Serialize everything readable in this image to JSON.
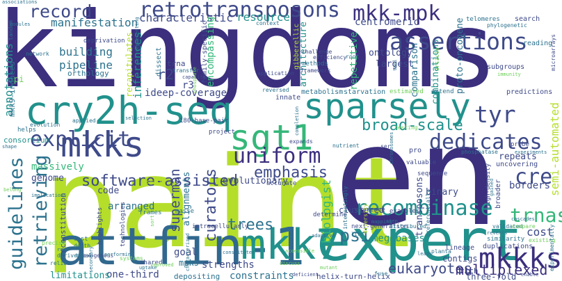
{
  "palette": {
    "background": "#ffffff",
    "indigo": "#3b2f7e",
    "navy": "#3e4a89",
    "blue": "#31688e",
    "steel": "#2c728e",
    "teal": "#21918c",
    "green": "#35b779",
    "lightgreen": "#6ece58",
    "lime": "#b5de2b",
    "purple": "#482878"
  },
  "words": [
    {
      "text": "kingdoms",
      "color": "indigo"
    },
    {
      "text": "paint",
      "color": "lime"
    },
    {
      "text": "en",
      "color": "indigo"
    },
    {
      "text": "expert",
      "color": "teal"
    },
    {
      "text": "attfin-1",
      "color": "blue"
    },
    {
      "text": "cry2h-seq",
      "color": "teal"
    },
    {
      "text": "sparsely",
      "color": "teal"
    },
    {
      "text": "mkk7",
      "color": "teal"
    },
    {
      "text": "mkks",
      "color": "navy"
    },
    {
      "text": "sgt1",
      "color": "green"
    },
    {
      "text": "retrotransposons",
      "color": "navy"
    },
    {
      "text": "uniform",
      "color": "indigo"
    },
    {
      "text": "mkk-mpk",
      "color": "indigo"
    },
    {
      "text": "assertions",
      "color": "navy"
    },
    {
      "text": "record",
      "color": "navy"
    },
    {
      "text": "explicit",
      "color": "navy"
    },
    {
      "text": "dedicates",
      "color": "navy"
    },
    {
      "text": "mkkks",
      "color": "indigo"
    },
    {
      "text": "recombinase",
      "color": "teal"
    },
    {
      "text": "guidelines",
      "color": "steel"
    },
    {
      "text": "retrieving",
      "color": "steel"
    },
    {
      "text": "tyr",
      "color": "navy"
    },
    {
      "text": "trnas",
      "color": "green"
    },
    {
      "text": "cre",
      "color": "navy"
    },
    {
      "text": "psi",
      "color": "steel"
    },
    {
      "text": "software-assisted",
      "color": "navy"
    },
    {
      "text": "broad-scale",
      "color": "teal"
    },
    {
      "text": "emphasis",
      "color": "navy"
    },
    {
      "text": "curators",
      "color": "navy"
    },
    {
      "text": "eukaryotes",
      "color": "navy"
    },
    {
      "text": "multiplexed",
      "color": "indigo"
    },
    {
      "text": "trees",
      "color": "steel"
    },
    {
      "text": "megabases",
      "color": "teal"
    },
    {
      "text": "superman",
      "color": "navy"
    },
    {
      "text": "biologist",
      "color": "green"
    },
    {
      "text": "manifestation",
      "color": "steel"
    },
    {
      "text": "characteristic",
      "color": "navy"
    },
    {
      "text": "resource",
      "color": "teal"
    },
    {
      "text": "annotations",
      "color": "teal"
    },
    {
      "text": "pipeline",
      "color": "steel"
    },
    {
      "text": "building",
      "color": "steel"
    },
    {
      "text": "r2",
      "color": "navy"
    },
    {
      "text": "r3",
      "color": "navy"
    },
    {
      "text": "inferences",
      "color": "teal"
    },
    {
      "text": "ideep-coverage",
      "color": "navy"
    },
    {
      "text": "encompassing",
      "color": "green"
    },
    {
      "text": "architecture",
      "color": "teal"
    },
    {
      "text": "centromeric",
      "color": "navy"
    },
    {
      "text": "repetitive",
      "color": "green"
    },
    {
      "text": "ontology",
      "color": "navy"
    },
    {
      "text": "largest",
      "color": "navy"
    },
    {
      "text": "comparison",
      "color": "steel"
    },
    {
      "text": "proto-oncogene",
      "color": "steel"
    },
    {
      "text": "combinations",
      "color": "teal"
    },
    {
      "text": "semi-automated",
      "color": "lime"
    },
    {
      "text": "borders",
      "color": "navy"
    },
    {
      "text": "repeats",
      "color": "navy"
    },
    {
      "text": "cost",
      "color": "navy"
    },
    {
      "text": "massively",
      "color": "green"
    },
    {
      "text": "genome",
      "color": "navy"
    },
    {
      "text": "evolutionary",
      "color": "navy"
    },
    {
      "text": "binary",
      "color": "navy"
    },
    {
      "text": "transposons",
      "color": "navy"
    },
    {
      "text": "arranged",
      "color": "steel"
    },
    {
      "text": "alignments",
      "color": "steel"
    },
    {
      "text": "code",
      "color": "navy"
    },
    {
      "text": "clustered",
      "color": "navy"
    },
    {
      "text": "strengths",
      "color": "navy"
    },
    {
      "text": "constraints",
      "color": "steel"
    },
    {
      "text": "one-third",
      "color": "navy"
    },
    {
      "text": "three-fold",
      "color": "navy"
    },
    {
      "text": "limitations",
      "color": "teal"
    },
    {
      "text": "goal",
      "color": "navy"
    },
    {
      "text": "depositing",
      "color": "steel"
    },
    {
      "text": "contigs",
      "color": "navy"
    },
    {
      "text": "rich",
      "color": "navy"
    },
    {
      "text": "mpks",
      "color": "steel"
    },
    {
      "text": "consortium",
      "color": "teal"
    },
    {
      "text": "mkk9-induced",
      "color": "steel"
    },
    {
      "text": "orthology",
      "color": "steel"
    },
    {
      "text": "recapitulates",
      "color": "lime"
    },
    {
      "text": "dissect",
      "color": "steel"
    },
    {
      "text": "trna",
      "color": "navy"
    },
    {
      "text": "reconstitution",
      "color": "navy"
    },
    {
      "text": "helix-turn-helix",
      "color": "navy"
    },
    {
      "text": "duplications",
      "color": "navy"
    },
    {
      "text": "predictions",
      "color": "navy"
    },
    {
      "text": "telomeres",
      "color": "steel"
    },
    {
      "text": "search",
      "color": "navy"
    },
    {
      "text": "reading",
      "color": "steel"
    },
    {
      "text": "subgroups",
      "color": "navy"
    },
    {
      "text": "high-density",
      "color": "navy"
    },
    {
      "text": "uncovering",
      "color": "navy"
    },
    {
      "text": "broader",
      "color": "navy"
    },
    {
      "text": "180-base-pair",
      "color": "navy"
    },
    {
      "text": "project",
      "color": "navy"
    },
    {
      "text": "valuable",
      "color": "navy"
    },
    {
      "text": "next-generation",
      "color": "navy"
    },
    {
      "text": "reference",
      "color": "navy"
    },
    {
      "text": "sequence",
      "color": "navy"
    },
    {
      "text": "accurate",
      "color": "navy"
    },
    {
      "text": "highlights",
      "color": "navy"
    },
    {
      "text": "technologies",
      "color": "navy"
    },
    {
      "text": "intracellularly",
      "color": "navy"
    },
    {
      "text": "tandem",
      "color": "steel"
    },
    {
      "text": "pi",
      "color": "lightgreen"
    },
    {
      "text": "network",
      "color": "steel"
    },
    {
      "text": "deprivation",
      "color": "navy"
    },
    {
      "text": "applied",
      "color": "steel"
    },
    {
      "text": "evolution",
      "color": "steel"
    },
    {
      "text": "helps",
      "color": "steel"
    },
    {
      "text": "implications",
      "color": "steel"
    },
    {
      "text": "lost",
      "color": "steel"
    },
    {
      "text": "death",
      "color": "steel"
    },
    {
      "text": "precise",
      "color": "lightgreen"
    },
    {
      "text": "derived",
      "color": "steel"
    },
    {
      "text": "total",
      "color": "steel"
    },
    {
      "text": "exogenous",
      "color": "navy"
    },
    {
      "text": "relies",
      "color": "steel"
    },
    {
      "text": "systems",
      "color": "lightgreen"
    },
    {
      "text": "shared",
      "color": "navy"
    },
    {
      "text": "improved",
      "color": "lightgreen"
    },
    {
      "text": "performing",
      "color": "steel"
    },
    {
      "text": "frames",
      "color": "steel"
    },
    {
      "text": "masse",
      "color": "steel"
    },
    {
      "text": "determine",
      "color": "navy"
    },
    {
      "text": "life",
      "color": "steel"
    },
    {
      "text": "fuse",
      "color": "steel"
    },
    {
      "text": "deficient",
      "color": "navy"
    },
    {
      "text": "lineage",
      "color": "navy"
    },
    {
      "text": "planta",
      "color": "steel"
    },
    {
      "text": "similarity",
      "color": "steel"
    },
    {
      "text": "validated",
      "color": "steel"
    },
    {
      "text": "cascades",
      "color": "steel"
    },
    {
      "text": "compare",
      "color": "lightgreen"
    },
    {
      "text": "existing",
      "color": "lightgreen"
    },
    {
      "text": "enable",
      "color": "navy"
    },
    {
      "text": "experimentally",
      "color": "steel"
    },
    {
      "text": "mapping",
      "color": "steel"
    },
    {
      "text": "distributed",
      "color": "steel"
    },
    {
      "text": "metabolism",
      "color": "steel"
    },
    {
      "text": "starvation",
      "color": "steel"
    },
    {
      "text": "estimated",
      "color": "lightgreen"
    },
    {
      "text": "extend",
      "color": "steel"
    },
    {
      "text": "innate",
      "color": "navy"
    },
    {
      "text": "reversed",
      "color": "steel"
    },
    {
      "text": "application",
      "color": "navy"
    },
    {
      "text": "gibberellic",
      "color": "lime"
    },
    {
      "text": "methods",
      "color": "steel"
    },
    {
      "text": "framework",
      "color": "navy"
    },
    {
      "text": "efficiency",
      "color": "navy"
    },
    {
      "text": "challenge",
      "color": "navy"
    },
    {
      "text": "capacity",
      "color": "navy"
    },
    {
      "text": "transfer",
      "color": "steel"
    },
    {
      "text": "family-specific",
      "color": "navy"
    },
    {
      "text": "root",
      "color": "steel"
    },
    {
      "text": "soils",
      "color": "lime"
    },
    {
      "text": "context",
      "color": "steel"
    },
    {
      "text": "phylogenetic",
      "color": "steel"
    },
    {
      "text": "microarrays",
      "color": "navy"
    },
    {
      "text": "immunity",
      "color": "lightgreen"
    },
    {
      "text": "phosphatase",
      "color": "steel"
    },
    {
      "text": "probe",
      "color": "navy"
    },
    {
      "text": "experiments",
      "color": "steel"
    },
    {
      "text": "gained",
      "color": "steel"
    },
    {
      "text": "testing",
      "color": "lightgreen"
    },
    {
      "text": "nutrient",
      "color": "steel"
    },
    {
      "text": "expands",
      "color": "navy"
    },
    {
      "text": "associations",
      "color": "steel"
    },
    {
      "text": "modules",
      "color": "steel"
    },
    {
      "text": "selection",
      "color": "steel"
    },
    {
      "text": "article",
      "color": "lightgreen"
    },
    {
      "text": "tool",
      "color": "steel"
    },
    {
      "text": "shape",
      "color": "steel"
    },
    {
      "text": "belong",
      "color": "lightgreen"
    },
    {
      "text": "pro",
      "color": "navy"
    },
    {
      "text": "ser",
      "color": "navy"
    },
    {
      "text": "uptake",
      "color": "steel"
    },
    {
      "text": "characterized",
      "color": "steel"
    },
    {
      "text": "completion",
      "color": "steel"
    },
    {
      "text": "chromosomes",
      "color": "steel"
    },
    {
      "text": "step",
      "color": "steel"
    },
    {
      "text": "examples",
      "color": "navy"
    },
    {
      "text": "interestingly",
      "color": "steel"
    },
    {
      "text": "diversity",
      "color": "lime"
    },
    {
      "text": "preferentially",
      "color": "steel"
    },
    {
      "text": "reveals",
      "color": "steel"
    },
    {
      "text": "leads",
      "color": "steel"
    },
    {
      "text": "constitutes",
      "color": "steel"
    },
    {
      "text": "adaptive",
      "color": "steel"
    },
    {
      "text": "discuss",
      "color": "lightgreen"
    },
    {
      "text": "mutant",
      "color": "lightgreen"
    },
    {
      "text": "accessible",
      "color": "lightgreen"
    },
    {
      "text": "representing",
      "color": "steel"
    },
    {
      "text": "phosphate",
      "color": "lightgreen"
    },
    {
      "text": "rnas",
      "color": "steel"
    },
    {
      "text": "sort",
      "color": "lightgreen"
    },
    {
      "text": "secondary",
      "color": "steel"
    }
  ]
}
